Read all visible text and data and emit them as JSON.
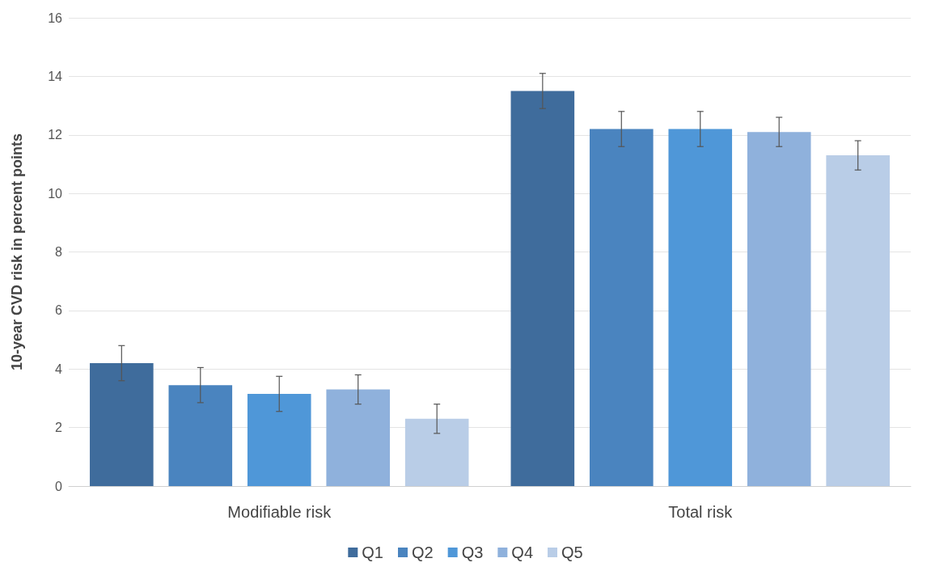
{
  "chart_data": {
    "type": "bar",
    "ylabel": "10-year CVD risk in percent points",
    "categories": [
      "Modifiable risk",
      "Total risk"
    ],
    "series": [
      {
        "name": "Q1",
        "color": "#3f6c9c",
        "values": [
          4.2,
          13.5
        ],
        "errors": [
          0.6,
          0.6
        ]
      },
      {
        "name": "Q2",
        "color": "#4a84bf",
        "values": [
          3.45,
          12.2
        ],
        "errors": [
          0.6,
          0.6
        ]
      },
      {
        "name": "Q3",
        "color": "#4f97d8",
        "values": [
          3.15,
          12.2
        ],
        "errors": [
          0.6,
          0.6
        ]
      },
      {
        "name": "Q4",
        "color": "#8fb1dc",
        "values": [
          3.3,
          12.1
        ],
        "errors": [
          0.5,
          0.5
        ]
      },
      {
        "name": "Q5",
        "color": "#b9cde7",
        "values": [
          2.3,
          11.3
        ],
        "errors": [
          0.5,
          0.5
        ]
      }
    ],
    "ylim": [
      0,
      16
    ],
    "yticks": [
      0,
      2,
      4,
      6,
      8,
      10,
      12,
      14,
      16
    ],
    "grid": "y",
    "legend": "bottom"
  }
}
